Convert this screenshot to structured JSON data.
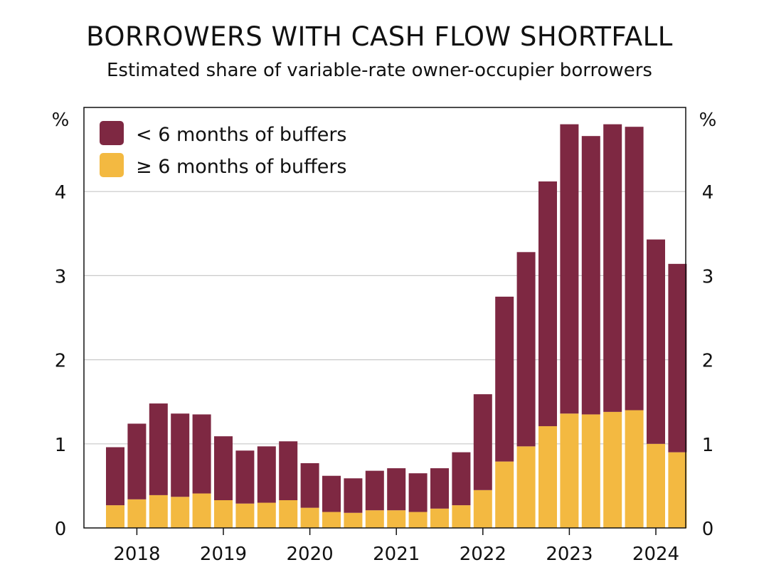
{
  "chart_data": {
    "type": "bar",
    "stacked": true,
    "title": "BORROWERS WITH CASH FLOW SHORTFALL",
    "subtitle": "Estimated share of variable-rate owner-occupier borrowers",
    "ylabel_left": "%",
    "ylabel_right": "%",
    "ylim": [
      0,
      5
    ],
    "yticks": [
      0,
      1,
      2,
      3,
      4
    ],
    "grid": true,
    "legend_position": "top-left",
    "x_tick_labels": [
      "2018",
      "2019",
      "2020",
      "2021",
      "2022",
      "2023",
      "2024"
    ],
    "x_tick_bar_index": [
      1,
      5,
      9,
      13,
      17,
      21,
      25
    ],
    "series": [
      {
        "name": "≥ 6 months of buffers",
        "color": "#f3b941",
        "values": [
          0.27,
          0.34,
          0.39,
          0.37,
          0.41,
          0.33,
          0.29,
          0.3,
          0.33,
          0.24,
          0.19,
          0.18,
          0.21,
          0.21,
          0.19,
          0.23,
          0.27,
          0.45,
          0.79,
          0.97,
          1.21,
          1.36,
          1.35,
          1.38,
          1.4,
          1.0,
          0.9
        ]
      },
      {
        "name": "< 6 months of buffers",
        "color": "#7e2842",
        "values": [
          0.69,
          0.9,
          1.09,
          0.99,
          0.94,
          0.76,
          0.63,
          0.67,
          0.7,
          0.53,
          0.43,
          0.41,
          0.47,
          0.5,
          0.46,
          0.48,
          0.63,
          1.14,
          1.96,
          2.31,
          2.91,
          3.44,
          3.31,
          3.42,
          3.37,
          2.43,
          2.24
        ]
      }
    ]
  }
}
